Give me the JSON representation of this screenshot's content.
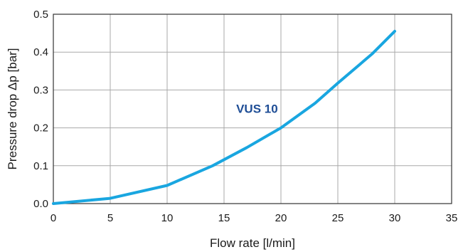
{
  "chart_data": {
    "type": "line",
    "title": "",
    "xlabel": "Flow rate [l/min]",
    "ylabel": "Pressure drop Δp [bar]",
    "xlim": [
      0,
      35
    ],
    "ylim": [
      0,
      0.5
    ],
    "x_ticks": [
      0,
      5,
      10,
      15,
      20,
      25,
      30,
      35
    ],
    "x_tick_labels": [
      "0",
      "5",
      "10",
      "15",
      "20",
      "25",
      "30",
      "35"
    ],
    "y_ticks": [
      0,
      0.1,
      0.2,
      0.3,
      0.4,
      0.5
    ],
    "y_tick_labels": [
      "0.0",
      "0.1",
      "0.2",
      "0.3",
      "0.4",
      "0.5"
    ],
    "grid": true,
    "series": [
      {
        "name": "VUS 10",
        "color": "#19a6e0",
        "x": [
          0,
          5,
          10,
          14,
          17,
          20,
          23,
          25,
          28,
          30
        ],
        "y": [
          0,
          0.014,
          0.048,
          0.1,
          0.148,
          0.2,
          0.265,
          0.318,
          0.395,
          0.455
        ]
      }
    ],
    "annotations": [
      {
        "text": "VUS 10",
        "x": 17.9,
        "y": 0.24,
        "color": "#1f4e96"
      }
    ]
  },
  "colors": {
    "grid": "#a9a9a9",
    "frame": "#333333",
    "background": "#ffffff"
  }
}
